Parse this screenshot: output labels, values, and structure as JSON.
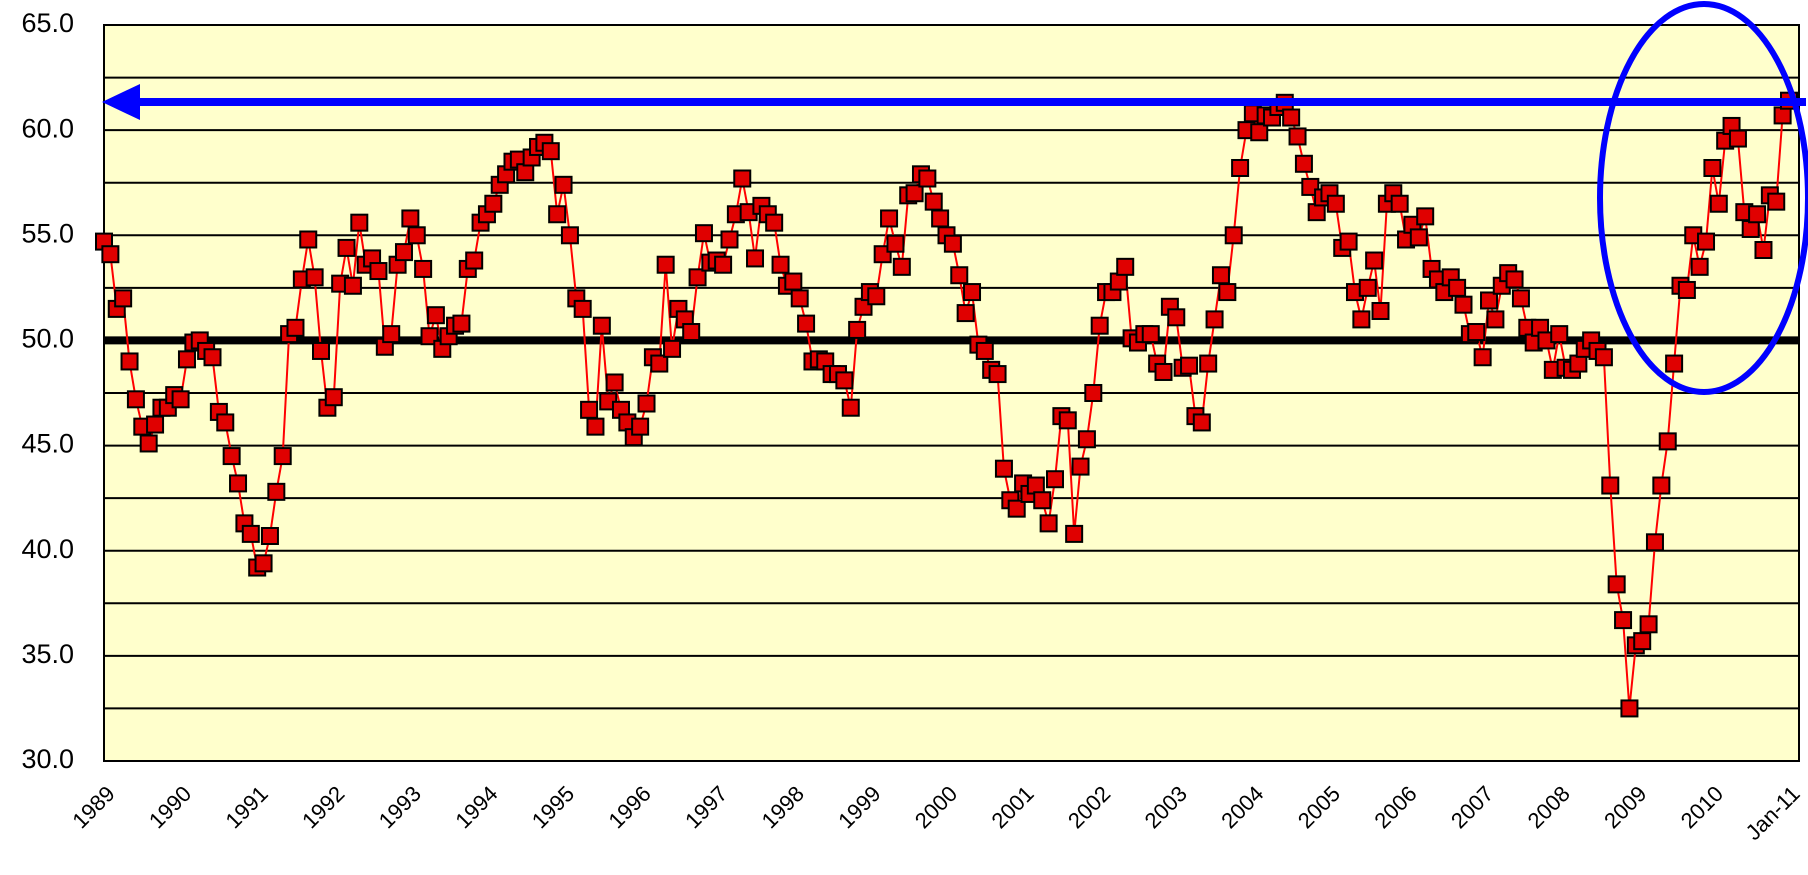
{
  "chart_data": {
    "type": "line",
    "categories": [
      "1989",
      null,
      null,
      null,
      null,
      null,
      null,
      null,
      null,
      null,
      null,
      null,
      "1990",
      null,
      null,
      null,
      null,
      null,
      null,
      null,
      null,
      null,
      null,
      null,
      "1991",
      null,
      null,
      null,
      null,
      null,
      null,
      null,
      null,
      null,
      null,
      null,
      "1992",
      null,
      null,
      null,
      null,
      null,
      null,
      null,
      null,
      null,
      null,
      null,
      "1993",
      null,
      null,
      null,
      null,
      null,
      null,
      null,
      null,
      null,
      null,
      null,
      "1994",
      null,
      null,
      null,
      null,
      null,
      null,
      null,
      null,
      null,
      null,
      null,
      "1995",
      null,
      null,
      null,
      null,
      null,
      null,
      null,
      null,
      null,
      null,
      null,
      "1996",
      null,
      null,
      null,
      null,
      null,
      null,
      null,
      null,
      null,
      null,
      null,
      "1997",
      null,
      null,
      null,
      null,
      null,
      null,
      null,
      null,
      null,
      null,
      null,
      "1998",
      null,
      null,
      null,
      null,
      null,
      null,
      null,
      null,
      null,
      null,
      null,
      "1999",
      null,
      null,
      null,
      null,
      null,
      null,
      null,
      null,
      null,
      null,
      null,
      "2000",
      null,
      null,
      null,
      null,
      null,
      null,
      null,
      null,
      null,
      null,
      null,
      "2001",
      null,
      null,
      null,
      null,
      null,
      null,
      null,
      null,
      null,
      null,
      null,
      "2002",
      null,
      null,
      null,
      null,
      null,
      null,
      null,
      null,
      null,
      null,
      null,
      "2003",
      null,
      null,
      null,
      null,
      null,
      null,
      null,
      null,
      null,
      null,
      null,
      "2004",
      null,
      null,
      null,
      null,
      null,
      null,
      null,
      null,
      null,
      null,
      null,
      "2005",
      null,
      null,
      null,
      null,
      null,
      null,
      null,
      null,
      null,
      null,
      null,
      "2006",
      null,
      null,
      null,
      null,
      null,
      null,
      null,
      null,
      null,
      null,
      null,
      "2007",
      null,
      null,
      null,
      null,
      null,
      null,
      null,
      null,
      null,
      null,
      null,
      "2008",
      null,
      null,
      null,
      null,
      null,
      null,
      null,
      null,
      null,
      null,
      null,
      "2009",
      null,
      null,
      null,
      null,
      null,
      null,
      null,
      null,
      null,
      null,
      null,
      "2010",
      null,
      null,
      null,
      null,
      null,
      null,
      null,
      null,
      null,
      null,
      null,
      "Jan-11"
    ],
    "values": [
      54.7,
      54.1,
      51.5,
      52.0,
      49.0,
      47.2,
      45.9,
      45.1,
      46.0,
      46.8,
      46.8,
      47.4,
      47.2,
      49.1,
      49.9,
      50.0,
      49.5,
      49.2,
      46.6,
      46.1,
      44.5,
      43.2,
      41.3,
      40.8,
      39.2,
      39.4,
      40.7,
      42.8,
      44.5,
      50.3,
      50.6,
      52.9,
      54.8,
      53.0,
      49.5,
      46.8,
      47.3,
      52.7,
      54.4,
      52.6,
      55.6,
      53.6,
      53.9,
      53.3,
      49.7,
      50.3,
      53.6,
      54.2,
      55.8,
      55.0,
      53.4,
      50.2,
      51.2,
      49.6,
      50.2,
      50.7,
      50.8,
      53.4,
      53.8,
      55.6,
      56.0,
      56.5,
      57.4,
      57.9,
      58.5,
      58.6,
      58.0,
      58.7,
      59.2,
      59.4,
      59.0,
      56.0,
      57.4,
      55.0,
      52.0,
      51.5,
      46.7,
      45.9,
      50.7,
      47.1,
      48.0,
      46.7,
      46.1,
      45.4,
      45.9,
      47.0,
      49.2,
      48.9,
      53.6,
      49.6,
      51.5,
      51.0,
      50.4,
      53.0,
      55.1,
      53.7,
      53.8,
      53.6,
      54.8,
      56.0,
      57.7,
      56.1,
      53.9,
      56.4,
      56.0,
      55.6,
      53.6,
      52.6,
      52.8,
      52.0,
      50.8,
      49.0,
      49.1,
      49.0,
      48.4,
      48.4,
      48.1,
      46.8,
      50.5,
      51.6,
      52.3,
      52.1,
      54.1,
      55.8,
      54.6,
      53.5,
      56.9,
      57.0,
      57.9,
      57.7,
      56.6,
      55.8,
      55.0,
      54.6,
      53.1,
      51.3,
      52.3,
      49.8,
      49.5,
      48.6,
      48.4,
      43.9,
      42.4,
      42.0,
      43.2,
      42.7,
      43.1,
      42.4,
      41.3,
      43.4,
      46.4,
      46.2,
      40.8,
      44.0,
      45.3,
      47.5,
      50.7,
      52.3,
      52.3,
      52.8,
      53.5,
      50.1,
      49.9,
      50.3,
      50.3,
      48.9,
      48.5,
      51.6,
      51.1,
      48.7,
      48.8,
      46.4,
      46.1,
      48.9,
      51.0,
      53.1,
      52.3,
      55.0,
      58.2,
      60.0,
      60.8,
      59.9,
      60.7,
      60.6,
      61.1,
      61.3,
      60.6,
      59.7,
      58.4,
      57.3,
      56.1,
      56.8,
      57.0,
      56.5,
      54.4,
      54.7,
      52.3,
      51.0,
      52.5,
      53.8,
      51.4,
      56.5,
      57.0,
      56.5,
      54.8,
      55.5,
      54.9,
      55.9,
      53.4,
      52.9,
      52.3,
      53.0,
      52.5,
      51.7,
      50.3,
      50.4,
      49.2,
      51.9,
      51.0,
      52.6,
      53.2,
      52.9,
      52.0,
      50.6,
      49.9,
      50.6,
      50.0,
      48.6,
      50.3,
      48.7,
      48.6,
      48.9,
      49.6,
      50.0,
      49.5,
      49.2,
      43.1,
      38.4,
      36.7,
      32.5,
      35.5,
      35.7,
      36.5,
      40.4,
      43.1,
      45.2,
      48.9,
      52.6,
      52.4,
      55.0,
      53.5,
      54.7,
      58.2,
      56.5,
      59.5,
      60.2,
      59.6,
      56.1,
      55.3,
      56.0,
      54.3,
      56.9,
      56.6,
      60.7,
      61.4
    ],
    "color": "#ff0000",
    "marker_color": "#e00000",
    "ylim": [
      30,
      65
    ],
    "yticks": [
      {
        "value": 30,
        "label": "30.0"
      },
      {
        "value": 35,
        "label": "35.0"
      },
      {
        "value": 40,
        "label": "40.0"
      },
      {
        "value": 45,
        "label": "45.0"
      },
      {
        "value": 50,
        "label": "50.0"
      },
      {
        "value": 55,
        "label": "55.0"
      },
      {
        "value": 60,
        "label": "60.0"
      },
      {
        "value": 65,
        "label": "65.0"
      }
    ],
    "minor_yticks": [
      32.5,
      37.5,
      42.5,
      47.5,
      52.5,
      57.5,
      62.5
    ],
    "grid": true,
    "reference_line": 50
  }
}
